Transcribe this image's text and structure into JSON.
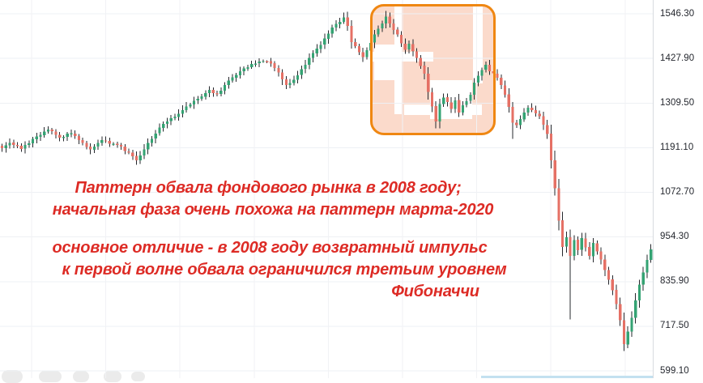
{
  "annotation": {
    "color": "#dd2b25",
    "lines": [
      "Паттерн обвала фондового рынка в 2008 году;",
      "начальная фаза очень похожа на паттерн марта-2020",
      "основное отличие - в 2008 году возвратный импульс",
      "к первой волне обвала ограничился третьим уровнем",
      "Фибоначчи"
    ]
  },
  "highlight_box": {
    "border_color": "#ef8712",
    "fill_color": "rgba(243,150,105,0.35)"
  },
  "chart_data": {
    "type": "candlestick",
    "title": "",
    "xlabel": "",
    "ylabel": "",
    "grid": true,
    "y_axis_side": "right",
    "y_ticks": [
      "1546.30",
      "1427.90",
      "1309.50",
      "1191.10",
      "1072.70",
      "954.30",
      "835.90",
      "717.50",
      "599.10"
    ],
    "y_tick_values": [
      1546.3,
      1427.9,
      1309.5,
      1191.1,
      1072.7,
      954.3,
      835.9,
      717.5,
      599.1
    ],
    "up_color": "#34a373",
    "down_color": "#e57065",
    "wick_color": "#26282d",
    "bottom_strip_color": "#c3e1f0",
    "num_candles": 170,
    "close_anchors": [
      [
        0,
        1190
      ],
      [
        2,
        1204
      ],
      [
        5,
        1188
      ],
      [
        8,
        1214
      ],
      [
        12,
        1239
      ],
      [
        15,
        1218
      ],
      [
        18,
        1229
      ],
      [
        21,
        1204
      ],
      [
        23,
        1186
      ],
      [
        26,
        1211
      ],
      [
        30,
        1199
      ],
      [
        33,
        1178
      ],
      [
        35,
        1158
      ],
      [
        38,
        1204
      ],
      [
        41,
        1244
      ],
      [
        44,
        1269
      ],
      [
        47,
        1291
      ],
      [
        51,
        1321
      ],
      [
        54,
        1344
      ],
      [
        56,
        1334
      ],
      [
        59,
        1369
      ],
      [
        62,
        1394
      ],
      [
        65,
        1413
      ],
      [
        68,
        1421
      ],
      [
        70,
        1414
      ],
      [
        72,
        1391
      ],
      [
        74,
        1357
      ],
      [
        76,
        1371
      ],
      [
        78,
        1399
      ],
      [
        80,
        1429
      ],
      [
        83,
        1464
      ],
      [
        85,
        1494
      ],
      [
        87,
        1519
      ],
      [
        89,
        1537
      ],
      [
        90,
        1514
      ],
      [
        91,
        1471
      ],
      [
        93,
        1444
      ],
      [
        94,
        1431
      ],
      [
        96,
        1469
      ],
      [
        98,
        1507
      ],
      [
        100,
        1539
      ],
      [
        101,
        1521
      ],
      [
        103,
        1491
      ],
      [
        105,
        1451
      ],
      [
        106,
        1467
      ],
      [
        108,
        1429
      ],
      [
        110,
        1387
      ],
      [
        111,
        1339
      ],
      [
        113,
        1261
      ],
      [
        114,
        1307
      ],
      [
        115,
        1324
      ],
      [
        117,
        1294
      ],
      [
        118,
        1317
      ],
      [
        119,
        1284
      ],
      [
        120,
        1304
      ],
      [
        122,
        1331
      ],
      [
        123,
        1364
      ],
      [
        125,
        1397
      ],
      [
        126,
        1411
      ],
      [
        127,
        1394
      ],
      [
        129,
        1377
      ],
      [
        130,
        1357
      ],
      [
        131,
        1332
      ],
      [
        132,
        1299
      ],
      [
        133,
        1257
      ],
      [
        134,
        1251
      ],
      [
        135,
        1267
      ],
      [
        136,
        1284
      ],
      [
        137,
        1297
      ],
      [
        138,
        1291
      ],
      [
        139,
        1282
      ],
      [
        140,
        1275
      ],
      [
        141,
        1252
      ],
      [
        142,
        1227
      ],
      [
        143,
        1158
      ],
      [
        144,
        1083
      ],
      [
        145,
        998
      ],
      [
        146,
        928
      ],
      [
        147,
        953
      ],
      [
        148,
        904
      ],
      [
        149,
        946
      ],
      [
        150,
        919
      ],
      [
        151,
        951
      ],
      [
        152,
        927
      ],
      [
        153,
        904
      ],
      [
        154,
        938
      ],
      [
        155,
        916
      ],
      [
        156,
        894
      ],
      [
        157,
        866
      ],
      [
        158,
        841
      ],
      [
        159,
        813
      ],
      [
        160,
        776
      ],
      [
        161,
        733
      ],
      [
        162,
        670
      ],
      [
        163,
        703
      ],
      [
        164,
        740
      ],
      [
        165,
        786
      ],
      [
        166,
        828
      ],
      [
        167,
        860
      ],
      [
        168,
        893
      ],
      [
        169,
        921
      ]
    ],
    "low_overrides": {
      "35": 1146,
      "113": 1242,
      "133": 1214,
      "148": 736,
      "162": 652
    },
    "high_overrides": {
      "89": 1549,
      "100": 1554
    }
  }
}
